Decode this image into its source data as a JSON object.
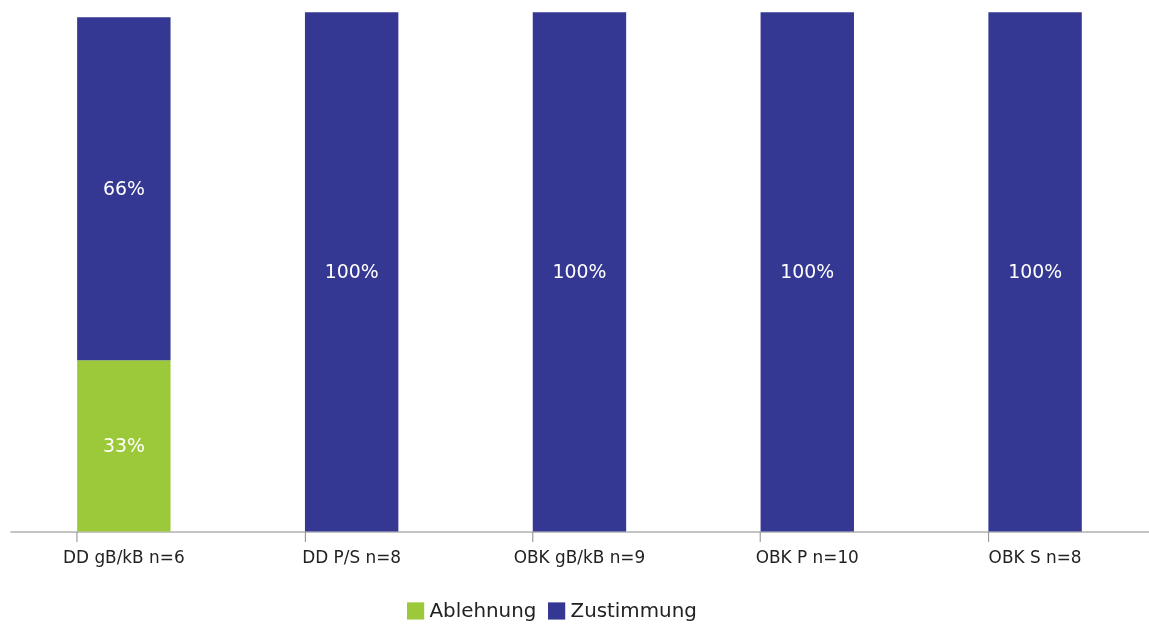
{
  "chart_data": {
    "type": "bar",
    "stacked": true,
    "categories": [
      "DD gB/kB n=6",
      "DD P/S n=8",
      "OBK gB/kB n=9",
      "OBK P n=10",
      "OBK S n=8"
    ],
    "series": [
      {
        "name": "Ablehnung",
        "color": "#9bc93a",
        "values": [
          33,
          null,
          null,
          null,
          null
        ],
        "value_labels": [
          "33%",
          null,
          null,
          null,
          null
        ]
      },
      {
        "name": "Zustimmung",
        "color": "#343893",
        "values": [
          66,
          100,
          100,
          100,
          100
        ],
        "value_labels": [
          "66%",
          "100%",
          "100%",
          "100%",
          "100%"
        ]
      }
    ],
    "legend": "bottom",
    "grid": false
  }
}
